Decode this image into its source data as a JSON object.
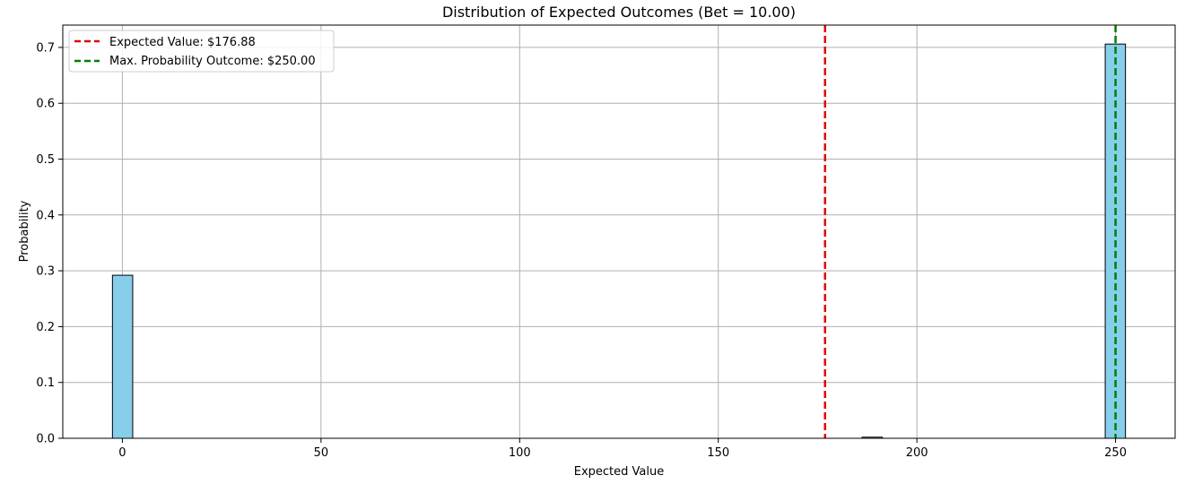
{
  "chart_data": {
    "type": "bar",
    "title": "Distribution of Expected Outcomes (Bet = 10.00)",
    "xlabel": "Expected Value",
    "ylabel": "Probability",
    "xlim": [
      -15,
      265
    ],
    "ylim": [
      0,
      0.74
    ],
    "grid": true,
    "legend_position": "top-left",
    "x_ticks": [
      0,
      50,
      100,
      150,
      200,
      250
    ],
    "x_tick_labels": [
      "0",
      "50",
      "100",
      "150",
      "200",
      "250"
    ],
    "y_ticks": [
      0.0,
      0.1,
      0.2,
      0.3,
      0.4,
      0.5,
      0.6,
      0.7
    ],
    "y_tick_labels": [
      "0.0",
      "0.1",
      "0.2",
      "0.3",
      "0.4",
      "0.5",
      "0.6",
      "0.7"
    ],
    "bin_start": -2.5,
    "bin_width": 5.1,
    "bin_count": 50,
    "nonzero_bins": [
      {
        "index": 0,
        "value": 0.292
      },
      {
        "index": 37,
        "value": 0.002
      },
      {
        "index": 49,
        "value": 0.706
      }
    ],
    "bar_color": "#87ceeb",
    "bar_edge_color": "#000000",
    "reference_lines": [
      {
        "name": "expected-value",
        "label": "Expected Value: $176.88",
        "x": 176.88,
        "color": "#e00000"
      },
      {
        "name": "max-probability",
        "label": "Max. Probability Outcome: $250.00",
        "x": 250.0,
        "color": "#008000"
      }
    ]
  }
}
